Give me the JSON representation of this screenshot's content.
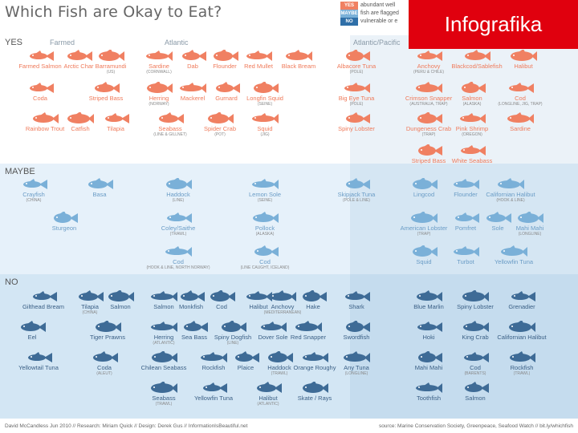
{
  "title": "Which Fish are Okay to Eat?",
  "badge": "Infografika",
  "legend": [
    {
      "key": "YES",
      "text": "abundant well"
    },
    {
      "key": "MAYBE",
      "text": "fish are flagged"
    },
    {
      "key": "NO",
      "text": "vulnerable or e"
    }
  ],
  "sections": {
    "yes": "YES",
    "maybe": "MAYBE",
    "no": "NO"
  },
  "columns": {
    "farmed": "Farmed",
    "atlantic": "Atlantic",
    "atlantic_pacific": "Atlantic/Pacific"
  },
  "colors": {
    "yes": "#f08062",
    "maybe": "#7ab0d8",
    "no": "#3e6b96",
    "badge": "#e0000e"
  },
  "footer": {
    "left": "David McCandless Jun 2010 // Research: Miriam Quick // Design: Derek Gus // InformationIsBeautiful.net",
    "right": "source: Marine Conservation Society, Greenpeace, Seafood Watch // bit.ly/whichfish"
  },
  "fish": {
    "yes": [
      {
        "label": "Farmed Salmon",
        "sub": ""
      },
      {
        "label": "Arctic Char",
        "sub": ""
      },
      {
        "label": "Barramundi",
        "sub": "(US)"
      },
      {
        "label": "Sardine",
        "sub": "(CORNWALL)"
      },
      {
        "label": "Dab",
        "sub": ""
      },
      {
        "label": "Flounder",
        "sub": ""
      },
      {
        "label": "Red Mullet",
        "sub": ""
      },
      {
        "label": "Black Bream",
        "sub": ""
      },
      {
        "label": "Albacore Tuna",
        "sub": "(POLE)"
      },
      {
        "label": "Anchovy",
        "sub": "(PERU & CHILE)"
      },
      {
        "label": "Blackcod/Sablefish",
        "sub": ""
      },
      {
        "label": "Halibut",
        "sub": ""
      },
      {
        "label": "Coda",
        "sub": ""
      },
      {
        "label": "Striped Bass",
        "sub": ""
      },
      {
        "label": "Herring",
        "sub": "(NORWAY)"
      },
      {
        "label": "Mackerel",
        "sub": ""
      },
      {
        "label": "Gurnard",
        "sub": ""
      },
      {
        "label": "Longfin Squid",
        "sub": "(SEINE)"
      },
      {
        "label": "Big Eye Tuna",
        "sub": "(POLE)"
      },
      {
        "label": "Crimson Snapper",
        "sub": "(AUSTRALIA, TRAP)"
      },
      {
        "label": "Salmon",
        "sub": "(ALASKA)"
      },
      {
        "label": "Cod",
        "sub": "(LONGLINE, JIG, TRAP)"
      },
      {
        "label": "Rainbow Trout",
        "sub": ""
      },
      {
        "label": "Catfish",
        "sub": ""
      },
      {
        "label": "Tilapia",
        "sub": ""
      },
      {
        "label": "Seabass",
        "sub": "(LINE & GILLNET)"
      },
      {
        "label": "Spider Crab",
        "sub": "(POT)"
      },
      {
        "label": "Squid",
        "sub": "(JIG)"
      },
      {
        "label": "Spiny Lobster",
        "sub": ""
      },
      {
        "label": "Dungeness Crab",
        "sub": "(TRAP)"
      },
      {
        "label": "Pink Shrimp",
        "sub": "(OREGON)"
      },
      {
        "label": "Sardine",
        "sub": ""
      },
      {
        "label": "Striped Bass",
        "sub": ""
      },
      {
        "label": "White Seabass",
        "sub": ""
      }
    ],
    "maybe": [
      {
        "label": "Crayfish",
        "sub": "(CHINA)"
      },
      {
        "label": "Basa",
        "sub": ""
      },
      {
        "label": "Haddock",
        "sub": "(LINE)"
      },
      {
        "label": "Lemon Sole",
        "sub": "(SEINE)"
      },
      {
        "label": "Skipjack Tuna",
        "sub": "(POLE & LINE)"
      },
      {
        "label": "Lingcod",
        "sub": ""
      },
      {
        "label": "Flounder",
        "sub": ""
      },
      {
        "label": "Californian Halibut",
        "sub": "(HOOK & LINE)"
      },
      {
        "label": "Sturgeon",
        "sub": ""
      },
      {
        "label": "Coley/Saithe",
        "sub": "(TRAWL)"
      },
      {
        "label": "Pollock",
        "sub": "(ALASKA)"
      },
      {
        "label": "American Lobster",
        "sub": "(TRAP)"
      },
      {
        "label": "Pomfret",
        "sub": ""
      },
      {
        "label": "Sole",
        "sub": ""
      },
      {
        "label": "Mahi Mahi",
        "sub": "(LONGLINE)"
      },
      {
        "label": "Cod",
        "sub": "(HOOK & LINE, NORTH NORWAY)"
      },
      {
        "label": "Cod",
        "sub": "(LINE CAUGHT, ICELAND)"
      },
      {
        "label": "Squid",
        "sub": ""
      },
      {
        "label": "Turbot",
        "sub": ""
      },
      {
        "label": "Yellowfin Tuna",
        "sub": ""
      }
    ],
    "no": [
      {
        "label": "Gilthead Bream",
        "sub": ""
      },
      {
        "label": "Tilapia",
        "sub": "(CHINA)"
      },
      {
        "label": "Salmon",
        "sub": ""
      },
      {
        "label": "Salmon",
        "sub": ""
      },
      {
        "label": "Monkfish",
        "sub": ""
      },
      {
        "label": "Cod",
        "sub": ""
      },
      {
        "label": "Halibut",
        "sub": ""
      },
      {
        "label": "Anchovy",
        "sub": "(MEDITERRANEAN)"
      },
      {
        "label": "Hake",
        "sub": ""
      },
      {
        "label": "Shark",
        "sub": ""
      },
      {
        "label": "Blue Marlin",
        "sub": ""
      },
      {
        "label": "Spiny Lobster",
        "sub": ""
      },
      {
        "label": "Grenadier",
        "sub": ""
      },
      {
        "label": "Eel",
        "sub": ""
      },
      {
        "label": "Tiger Prawns",
        "sub": ""
      },
      {
        "label": "Herring",
        "sub": "(ATLANTIC)"
      },
      {
        "label": "Sea Bass",
        "sub": ""
      },
      {
        "label": "Spiny Dogfish",
        "sub": "(LINE)"
      },
      {
        "label": "Dover Sole",
        "sub": ""
      },
      {
        "label": "Red Snapper",
        "sub": ""
      },
      {
        "label": "Swordfish",
        "sub": ""
      },
      {
        "label": "Hoki",
        "sub": ""
      },
      {
        "label": "King Crab",
        "sub": ""
      },
      {
        "label": "Californian Halibut",
        "sub": ""
      },
      {
        "label": "Yellowtail Tuna",
        "sub": ""
      },
      {
        "label": "Coda",
        "sub": "(ALEUT)"
      },
      {
        "label": "Chilean Seabass",
        "sub": ""
      },
      {
        "label": "Rockfish",
        "sub": ""
      },
      {
        "label": "Plaice",
        "sub": ""
      },
      {
        "label": "Haddock",
        "sub": "(TRAWL)"
      },
      {
        "label": "Orange Roughy",
        "sub": ""
      },
      {
        "label": "Any Tuna",
        "sub": "(LONGLINE)"
      },
      {
        "label": "Mahi Mahi",
        "sub": ""
      },
      {
        "label": "Cod",
        "sub": "(BARENTS)"
      },
      {
        "label": "Rockfish",
        "sub": "(TRAWL)"
      },
      {
        "label": "Seabass",
        "sub": "(TRAWL)"
      },
      {
        "label": "Yellowfin Tuna",
        "sub": ""
      },
      {
        "label": "Halibut",
        "sub": "(ATLANTIC)"
      },
      {
        "label": "Skate / Rays",
        "sub": ""
      },
      {
        "label": "Toothfish",
        "sub": ""
      },
      {
        "label": "Salmon",
        "sub": ""
      }
    ]
  }
}
